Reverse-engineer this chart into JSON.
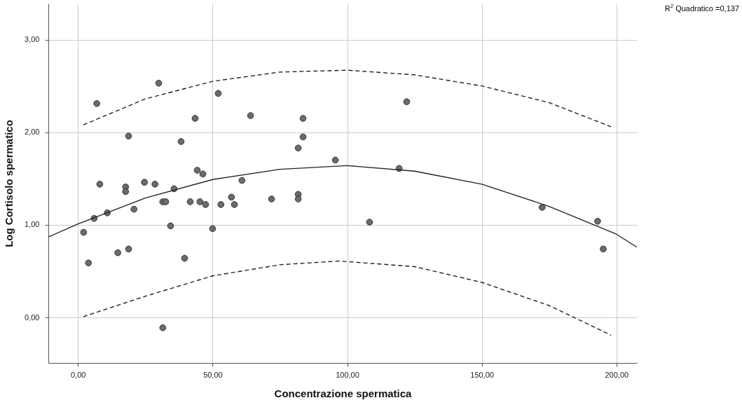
{
  "chart_data": {
    "type": "scatter",
    "xlabel": "Concentrazione spermatica",
    "ylabel": "Log Cortisolo spermatico",
    "annotations": [
      "R$^{2}$ Quadratico =0,137"
    ],
    "xlim": [
      -11,
      207.6
    ],
    "ylim": [
      -0.49,
      3.39
    ],
    "xticks": [
      {
        "value": 0,
        "label": "0,00"
      },
      {
        "value": 50,
        "label": "50,00"
      },
      {
        "value": 100,
        "label": "100,00"
      },
      {
        "value": 150,
        "label": "150,00"
      },
      {
        "value": 200,
        "label": "200,00"
      }
    ],
    "yticks": [
      {
        "value": 0,
        "label": "0,00"
      },
      {
        "value": 1,
        "label": "1,00"
      },
      {
        "value": 2,
        "label": "2,00"
      },
      {
        "value": 3,
        "label": "3,00"
      }
    ],
    "grid": true,
    "series": [
      {
        "marker": "circle",
        "color": "#6b6b6b",
        "x": [
          2.1,
          3.9,
          6.0,
          7.0,
          8.1,
          10.9,
          14.8,
          17.7,
          17.7,
          18.8,
          18.8,
          20.8,
          24.7,
          28.6,
          30.0,
          31.5,
          31.5,
          32.6,
          34.4,
          35.7,
          38.3,
          39.6,
          41.7,
          43.5,
          44.3,
          45.3,
          46.4,
          47.4,
          50.0,
          52.1,
          53.1,
          57.0,
          58.1,
          60.9,
          64.1,
          71.9,
          81.8,
          81.8,
          81.8,
          83.6,
          83.6,
          95.6,
          108.3,
          119.3,
          122.1,
          172.4,
          193.0,
          195.1
        ],
        "values": [
          0.92,
          0.59,
          1.07,
          2.31,
          1.44,
          1.13,
          0.7,
          1.41,
          1.36,
          1.96,
          0.74,
          1.17,
          1.46,
          1.44,
          2.53,
          -0.11,
          1.25,
          1.25,
          0.99,
          1.39,
          1.9,
          0.64,
          1.25,
          2.15,
          1.59,
          1.25,
          1.55,
          1.22,
          0.96,
          2.42,
          1.22,
          1.3,
          1.22,
          1.48,
          2.18,
          1.28,
          1.83,
          1.33,
          1.28,
          2.15,
          1.95,
          1.7,
          1.03,
          1.61,
          2.33,
          1.19,
          1.04,
          0.74
        ]
      },
      {
        "type": "line",
        "color": "#222222",
        "line_style": "solid",
        "x": [
          -11,
          0,
          25,
          50,
          75,
          100,
          125,
          150,
          175,
          200,
          207.6
        ],
        "values": [
          0.87,
          1.01,
          1.29,
          1.49,
          1.6,
          1.64,
          1.58,
          1.44,
          1.2,
          0.9,
          0.76
        ]
      },
      {
        "type": "line",
        "color": "#222222",
        "line_style": "dashed",
        "x": [
          2,
          25,
          50,
          75,
          100,
          125,
          150,
          175,
          198
        ],
        "values": [
          2.08,
          2.36,
          2.55,
          2.65,
          2.67,
          2.62,
          2.5,
          2.32,
          2.06
        ]
      },
      {
        "type": "line",
        "color": "#222222",
        "line_style": "dashed",
        "x": [
          2,
          25,
          50,
          75,
          97,
          125,
          150,
          175,
          198
        ],
        "values": [
          0.01,
          0.23,
          0.45,
          0.57,
          0.61,
          0.55,
          0.38,
          0.13,
          -0.19
        ]
      }
    ]
  }
}
